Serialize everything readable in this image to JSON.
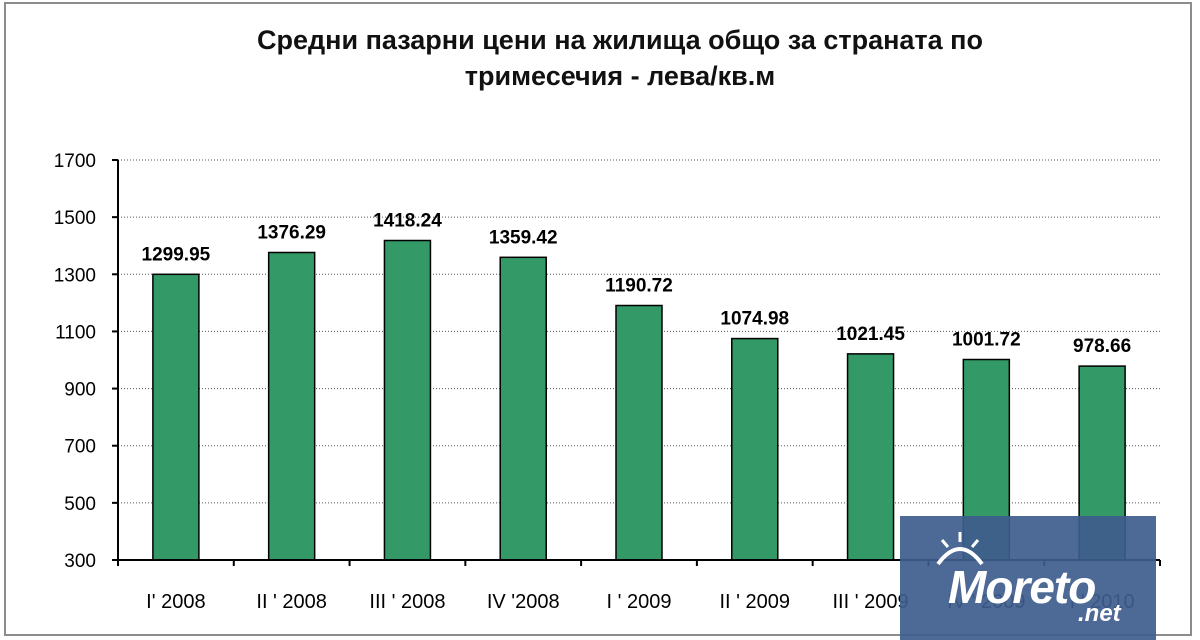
{
  "chart_data": {
    "type": "bar",
    "title_lines": [
      "Средни пазарни цени на жилища общо за страната по",
      "тримесечия - лева/кв.м"
    ],
    "categories": [
      "I' 2008",
      "II ' 2008",
      "III ' 2008",
      "IV '2008",
      "I ' 2009",
      "II ' 2009",
      "III ' 2009",
      "IV ' 2009",
      "I ' 2010"
    ],
    "values": [
      1299.95,
      1376.29,
      1418.24,
      1359.42,
      1190.72,
      1074.98,
      1021.45,
      1001.72,
      978.66
    ],
    "value_labels": [
      "1299.95",
      "1376.29",
      "1418.24",
      "1359.42",
      "1190.72",
      "1074.98",
      "1021.45",
      "1001.72",
      "978.66"
    ],
    "ylim": [
      300,
      1700
    ],
    "yticks": [
      "300",
      "500",
      "700",
      "900",
      "1100",
      "1300",
      "1500",
      "1700"
    ],
    "grid": "horizontal dotted",
    "bar_color": "#339966"
  },
  "watermark": {
    "brand": "Moreto",
    "suffix": ".net"
  }
}
